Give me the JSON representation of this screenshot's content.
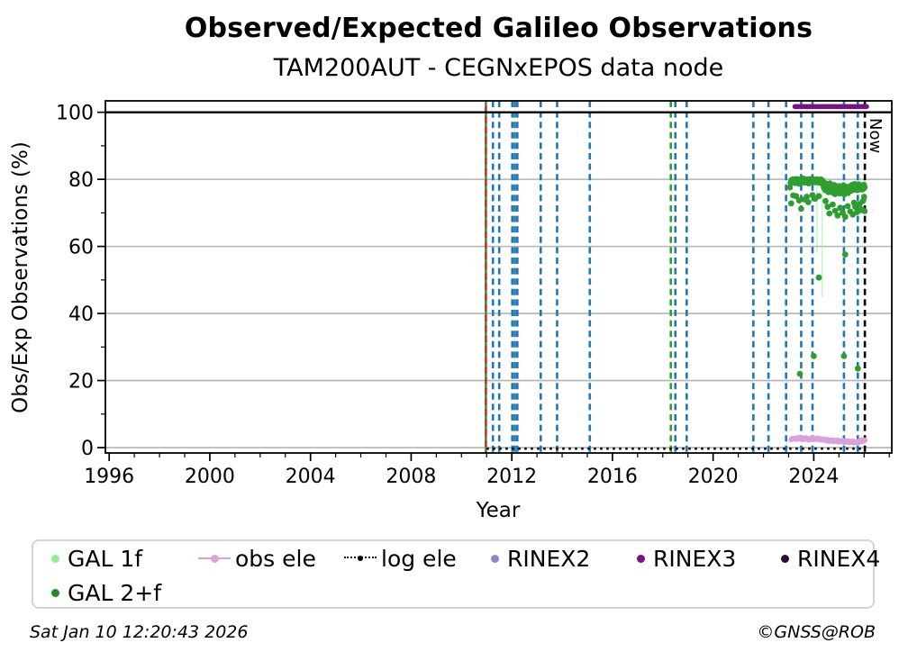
{
  "header": {
    "title": "Observed/Expected Galileo Observations",
    "subtitle": "TAM200AUT - CEGNxEPOS data node"
  },
  "axes": {
    "xlabel": "Year",
    "ylabel": "Obs/Exp Observations (%)",
    "now_label": "Now",
    "x_major_ticks": [
      1996,
      2000,
      2004,
      2008,
      2012,
      2016,
      2020,
      2024
    ],
    "x_minor_step_years": 1,
    "y_major_ticks": [
      0,
      20,
      40,
      60,
      80,
      100
    ],
    "y_minor_step": 10
  },
  "chart_data": {
    "type": "scatter",
    "title": "Observed/Expected Galileo Observations",
    "subtitle": "TAM200AUT - CEGNxEPOS data node",
    "xlabel": "Year",
    "ylabel": "Obs/Exp Observations (%)",
    "xlim": [
      1995.85,
      2027.1
    ],
    "ylim": [
      -1.6,
      103.4
    ],
    "grid": {
      "y_major": [
        0,
        20,
        40,
        60,
        80,
        100
      ],
      "vertical_grid": false
    },
    "reference_line_y": 100,
    "vertical_events": [
      {
        "x": 2010.97,
        "color": "#2ca02c",
        "style": "dashed"
      },
      {
        "x": 2010.97,
        "color": "#d62728",
        "style": "dashed",
        "dash_phase": 5.8
      },
      {
        "x": 2011.25,
        "color": "#1f77b4",
        "style": "dashed"
      },
      {
        "x": 2011.5,
        "color": "#1f77b4",
        "style": "dashed"
      },
      {
        "x": 2012.02,
        "color": "#1f77b4",
        "style": "dashed"
      },
      {
        "x": 2012.12,
        "color": "#1f77b4",
        "style": "dashed"
      },
      {
        "x": 2012.22,
        "color": "#1f77b4",
        "style": "dashed"
      },
      {
        "x": 2013.15,
        "color": "#1f77b4",
        "style": "dashed"
      },
      {
        "x": 2013.8,
        "color": "#1f77b4",
        "style": "dashed"
      },
      {
        "x": 2015.1,
        "color": "#1f77b4",
        "style": "dashed"
      },
      {
        "x": 2018.32,
        "color": "#2ca02c",
        "style": "dashed"
      },
      {
        "x": 2018.5,
        "color": "#1f77b4",
        "style": "dashed"
      },
      {
        "x": 2018.95,
        "color": "#1f77b4",
        "style": "dashed"
      },
      {
        "x": 2021.6,
        "color": "#1f77b4",
        "style": "dashed"
      },
      {
        "x": 2022.2,
        "color": "#1f77b4",
        "style": "dashed"
      },
      {
        "x": 2022.9,
        "color": "#1f77b4",
        "style": "dashed"
      },
      {
        "x": 2023.5,
        "color": "#1f77b4",
        "style": "dashed"
      },
      {
        "x": 2023.95,
        "color": "#1f77b4",
        "style": "dashed"
      },
      {
        "x": 2025.2,
        "color": "#1f77b4",
        "style": "dashed"
      },
      {
        "x": 2025.75,
        "color": "#1f77b4",
        "style": "dashed"
      },
      {
        "x": 2026.03,
        "color": "#000000",
        "style": "dashed",
        "label": "Now"
      }
    ],
    "series": [
      {
        "name": "GAL 1f",
        "color": "#90ee90",
        "render": "vsegments",
        "segments": [
          {
            "x": 2024.33,
            "y_from": 45,
            "y_to": 79
          },
          {
            "x": 2024.13,
            "y_from": 58,
            "y_to": 79
          }
        ]
      },
      {
        "name": "GAL 2+f",
        "color": "#2e9e2e",
        "render": "points",
        "marker_r": 3.4,
        "points": [
          [
            2023.05,
            77.6
          ],
          [
            2023.08,
            78.9
          ],
          [
            2023.11,
            79.6
          ],
          [
            2023.14,
            79.9
          ],
          [
            2023.17,
            79.2
          ],
          [
            2023.2,
            80.0
          ],
          [
            2023.23,
            79.6
          ],
          [
            2023.26,
            78.9
          ],
          [
            2023.29,
            79.8
          ],
          [
            2023.32,
            80.1
          ],
          [
            2023.35,
            79.4
          ],
          [
            2023.38,
            79.9
          ],
          [
            2023.41,
            78.7
          ],
          [
            2023.44,
            79.5
          ],
          [
            2023.47,
            80.0
          ],
          [
            2023.5,
            79.8
          ],
          [
            2023.53,
            79.1
          ],
          [
            2023.56,
            79.9
          ],
          [
            2023.59,
            80.2
          ],
          [
            2023.62,
            79.5
          ],
          [
            2023.65,
            79.0
          ],
          [
            2023.68,
            79.7
          ],
          [
            2023.71,
            80.0
          ],
          [
            2023.74,
            79.3
          ],
          [
            2023.77,
            79.9
          ],
          [
            2023.8,
            78.8
          ],
          [
            2023.83,
            79.5
          ],
          [
            2023.86,
            80.1
          ],
          [
            2023.89,
            79.7
          ],
          [
            2023.92,
            79.2
          ],
          [
            2023.95,
            79.8
          ],
          [
            2023.98,
            80.0
          ],
          [
            2024.01,
            79.4
          ],
          [
            2024.04,
            79.9
          ],
          [
            2024.07,
            79.1
          ],
          [
            2024.1,
            79.7
          ],
          [
            2024.13,
            80.0
          ],
          [
            2024.16,
            79.3
          ],
          [
            2024.19,
            79.8
          ],
          [
            2024.22,
            79.0
          ],
          [
            2024.25,
            79.6
          ],
          [
            2024.28,
            80.0
          ],
          [
            2024.31,
            79.2
          ],
          [
            2024.34,
            79.7
          ],
          [
            2024.37,
            78.4
          ],
          [
            2024.4,
            77.5
          ],
          [
            2024.43,
            78.9
          ],
          [
            2024.46,
            76.8
          ],
          [
            2024.49,
            78.2
          ],
          [
            2024.52,
            77.0
          ],
          [
            2024.55,
            78.6
          ],
          [
            2024.58,
            76.2
          ],
          [
            2024.61,
            77.8
          ],
          [
            2024.64,
            78.8
          ],
          [
            2024.67,
            76.5
          ],
          [
            2024.7,
            77.4
          ],
          [
            2024.73,
            78.1
          ],
          [
            2024.76,
            76.0
          ],
          [
            2024.79,
            77.0
          ],
          [
            2024.82,
            78.3
          ],
          [
            2024.85,
            75.6
          ],
          [
            2024.88,
            76.8
          ],
          [
            2024.91,
            77.9
          ],
          [
            2024.94,
            76.2
          ],
          [
            2024.97,
            77.3
          ],
          [
            2025.0,
            78.0
          ],
          [
            2025.03,
            75.8
          ],
          [
            2025.06,
            76.9
          ],
          [
            2025.09,
            77.6
          ],
          [
            2025.12,
            76.0
          ],
          [
            2025.15,
            77.1
          ],
          [
            2025.18,
            78.2
          ],
          [
            2025.21,
            75.5
          ],
          [
            2025.24,
            76.6
          ],
          [
            2025.27,
            77.8
          ],
          [
            2025.3,
            76.3
          ],
          [
            2025.33,
            77.2
          ],
          [
            2025.36,
            75.9
          ],
          [
            2025.39,
            76.8
          ],
          [
            2025.42,
            77.5
          ],
          [
            2025.45,
            78.0
          ],
          [
            2025.48,
            76.6
          ],
          [
            2025.51,
            77.7
          ],
          [
            2025.54,
            78.4
          ],
          [
            2025.57,
            76.9
          ],
          [
            2025.6,
            77.8
          ],
          [
            2025.63,
            78.6
          ],
          [
            2025.66,
            77.2
          ],
          [
            2025.69,
            78.1
          ],
          [
            2025.72,
            76.8
          ],
          [
            2025.75,
            77.9
          ],
          [
            2025.78,
            78.5
          ],
          [
            2025.81,
            77.0
          ],
          [
            2025.84,
            78.2
          ],
          [
            2025.87,
            77.4
          ],
          [
            2025.9,
            78.0
          ],
          [
            2025.93,
            77.0
          ],
          [
            2025.96,
            77.8
          ],
          [
            2025.99,
            78.4
          ],
          [
            2026.02,
            77.6
          ],
          [
            2023.1,
            72.8
          ],
          [
            2023.18,
            75.2
          ],
          [
            2023.3,
            75.0
          ],
          [
            2023.42,
            73.7
          ],
          [
            2023.5,
            71.2
          ],
          [
            2023.62,
            74.0
          ],
          [
            2023.72,
            74.8
          ],
          [
            2023.78,
            73.2
          ],
          [
            2023.95,
            75.3
          ],
          [
            2024.05,
            74.2
          ],
          [
            2024.2,
            75.0
          ],
          [
            2024.47,
            73.5
          ],
          [
            2024.55,
            71.8
          ],
          [
            2024.62,
            69.8
          ],
          [
            2024.75,
            72.5
          ],
          [
            2024.85,
            70.6
          ],
          [
            2024.95,
            69.2
          ],
          [
            2025.05,
            71.5
          ],
          [
            2025.15,
            70.0
          ],
          [
            2025.25,
            68.8
          ],
          [
            2025.35,
            72.0
          ],
          [
            2025.45,
            70.4
          ],
          [
            2025.55,
            69.5
          ],
          [
            2025.6,
            73.0
          ],
          [
            2025.65,
            71.8
          ],
          [
            2025.72,
            70.2
          ],
          [
            2025.82,
            72.6
          ],
          [
            2025.88,
            70.8
          ],
          [
            2025.92,
            71.0
          ],
          [
            2025.95,
            73.5
          ],
          [
            2026.0,
            74.8
          ],
          [
            2026.02,
            70.5
          ],
          [
            2024.2,
            50.7
          ],
          [
            2025.25,
            57.6
          ],
          [
            2024.0,
            27.3
          ],
          [
            2025.2,
            27.3
          ],
          [
            2025.75,
            23.6
          ],
          [
            2023.45,
            22.0
          ]
        ]
      },
      {
        "name": "obs ele",
        "color": "#dda0dd",
        "render": "line-points",
        "marker_r": 3,
        "points": [
          [
            2023.1,
            2.4
          ],
          [
            2023.15,
            2.7
          ],
          [
            2023.2,
            2.6
          ],
          [
            2023.25,
            2.8
          ],
          [
            2023.3,
            2.5
          ],
          [
            2023.35,
            2.9
          ],
          [
            2023.4,
            2.6
          ],
          [
            2023.45,
            3.0
          ],
          [
            2023.5,
            2.7
          ],
          [
            2023.55,
            2.4
          ],
          [
            2023.6,
            2.8
          ],
          [
            2023.65,
            2.5
          ],
          [
            2023.7,
            2.9
          ],
          [
            2023.75,
            2.6
          ],
          [
            2023.8,
            2.3
          ],
          [
            2023.85,
            2.7
          ],
          [
            2023.9,
            2.5
          ],
          [
            2023.95,
            2.8
          ],
          [
            2024.0,
            2.4
          ],
          [
            2024.05,
            2.7
          ],
          [
            2024.1,
            2.5
          ],
          [
            2024.15,
            2.8
          ],
          [
            2024.2,
            2.6
          ],
          [
            2024.25,
            2.3
          ],
          [
            2024.3,
            2.6
          ],
          [
            2024.35,
            2.4
          ],
          [
            2024.4,
            2.2
          ],
          [
            2024.45,
            2.5
          ],
          [
            2024.5,
            2.1
          ],
          [
            2024.55,
            2.4
          ],
          [
            2024.6,
            1.9
          ],
          [
            2024.65,
            2.2
          ],
          [
            2024.7,
            2.0
          ],
          [
            2024.75,
            2.3
          ],
          [
            2024.8,
            1.8
          ],
          [
            2024.85,
            2.1
          ],
          [
            2024.9,
            1.9
          ],
          [
            2024.95,
            2.2
          ],
          [
            2025.0,
            1.7
          ],
          [
            2025.05,
            2.0
          ],
          [
            2025.1,
            1.8
          ],
          [
            2025.15,
            2.1
          ],
          [
            2025.2,
            1.6
          ],
          [
            2025.25,
            1.9
          ],
          [
            2025.3,
            1.7
          ],
          [
            2025.35,
            2.0
          ],
          [
            2025.4,
            1.5
          ],
          [
            2025.45,
            1.8
          ],
          [
            2025.5,
            1.6
          ],
          [
            2025.55,
            1.9
          ],
          [
            2025.6,
            1.4
          ],
          [
            2025.65,
            1.7
          ],
          [
            2025.7,
            1.5
          ],
          [
            2025.75,
            1.8
          ],
          [
            2025.8,
            1.6
          ],
          [
            2025.85,
            2.2
          ],
          [
            2025.9,
            1.9
          ],
          [
            2025.95,
            2.3
          ],
          [
            2026.0,
            2.0
          ],
          [
            2026.03,
            2.2
          ]
        ]
      },
      {
        "name": "log ele",
        "color": "#000000",
        "render": "dotted-line",
        "line": [
          [
            2011.0,
            -0.3
          ],
          [
            2026.05,
            -0.3
          ]
        ]
      },
      {
        "name": "RINEX2",
        "color": "#9583cb",
        "render": "points",
        "points": []
      },
      {
        "name": "RINEX3",
        "color": "#7a1183",
        "render": "thick-line",
        "linewidth": 5.5,
        "line": [
          [
            2023.25,
            101.7
          ],
          [
            2026.1,
            101.7
          ]
        ]
      },
      {
        "name": "RINEX4",
        "color": "#2d0a33",
        "render": "points",
        "points": []
      }
    ]
  },
  "legend": {
    "items": [
      {
        "label": "GAL 1f",
        "color": "#90ee90",
        "marker": "dot"
      },
      {
        "label": "obs ele",
        "color": "#dda0dd",
        "marker": "line-dot"
      },
      {
        "label": "log ele",
        "color": "#000000",
        "marker": "dotted-line-dot"
      },
      {
        "label": "RINEX2",
        "color": "#9583cb",
        "marker": "dot"
      },
      {
        "label": "RINEX3",
        "color": "#7a1183",
        "marker": "dot"
      },
      {
        "label": "RINEX4",
        "color": "#2d0a33",
        "marker": "dot"
      },
      {
        "label": "GAL 2+f",
        "color": "#228b22",
        "marker": "dot"
      }
    ]
  },
  "footer": {
    "timestamp": "Sat Jan 10 12:20:43 2026",
    "credit": "©GNSS@ROB"
  }
}
